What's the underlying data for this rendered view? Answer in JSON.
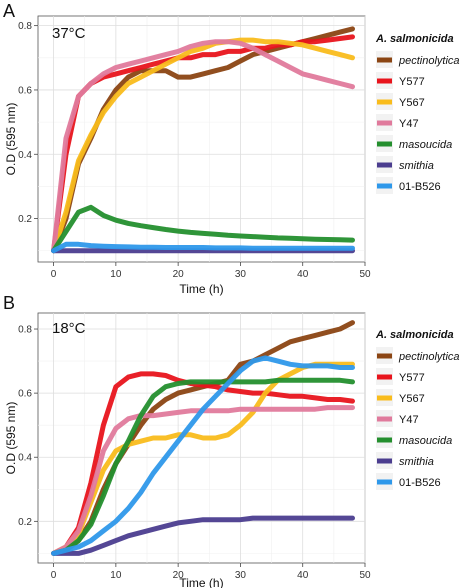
{
  "panels": [
    {
      "label": "A",
      "temperature": "37°C"
    },
    {
      "label": "B",
      "temperature": "18°C"
    }
  ],
  "legend": {
    "title": "A. salmonicida",
    "entries": [
      {
        "name": "pectinolytica",
        "color": "#8B4513",
        "italic": true
      },
      {
        "name": "Y577",
        "color": "#E8141C",
        "italic": false
      },
      {
        "name": "Y567",
        "color": "#F9BC1C",
        "italic": false
      },
      {
        "name": "Y47",
        "color": "#E07A9C",
        "italic": false
      },
      {
        "name": "masoucida",
        "color": "#248F2E",
        "italic": true
      },
      {
        "name": "smithia",
        "color": "#4B3D8F",
        "italic": true
      },
      {
        "name": "01-B526",
        "color": "#2E98EA",
        "italic": false
      }
    ]
  },
  "chart_data": [
    {
      "type": "line",
      "panel": "A",
      "annotation": "37°C",
      "xlabel": "Time (h)",
      "ylabel": "O.D (595 nm)",
      "xlim": [
        -2.5,
        50
      ],
      "ylim": [
        0.065,
        0.83
      ],
      "xticks": [
        0,
        10,
        20,
        30,
        40,
        50
      ],
      "yticks": [
        0.2,
        0.4,
        0.6,
        0.8
      ],
      "grid": true,
      "legend_position": "right",
      "x": [
        0,
        2,
        4,
        6,
        8,
        10,
        12,
        14,
        16,
        18,
        20,
        22,
        24,
        26,
        28,
        30,
        32,
        34,
        36,
        38,
        40,
        42,
        44,
        46,
        48
      ],
      "series": [
        {
          "name": "pectinolytica",
          "values": [
            0.1,
            0.2,
            0.37,
            0.45,
            0.54,
            0.6,
            0.64,
            0.66,
            0.66,
            0.66,
            0.64,
            0.64,
            0.65,
            0.66,
            0.67,
            0.69,
            0.71,
            0.72,
            0.73,
            0.74,
            0.75,
            0.76,
            0.77,
            0.78,
            0.79
          ]
        },
        {
          "name": "Y577",
          "values": [
            0.1,
            0.4,
            0.58,
            0.62,
            0.64,
            0.65,
            0.66,
            0.67,
            0.68,
            0.69,
            0.7,
            0.7,
            0.71,
            0.71,
            0.72,
            0.72,
            0.73,
            0.73,
            0.74,
            0.74,
            0.75,
            0.75,
            0.755,
            0.76,
            0.765
          ]
        },
        {
          "name": "Y567",
          "values": [
            0.1,
            0.22,
            0.38,
            0.46,
            0.53,
            0.58,
            0.62,
            0.64,
            0.66,
            0.68,
            0.7,
            0.72,
            0.73,
            0.745,
            0.75,
            0.755,
            0.755,
            0.75,
            0.75,
            0.745,
            0.74,
            0.73,
            0.72,
            0.71,
            0.7
          ]
        },
        {
          "name": "Y47",
          "values": [
            0.1,
            0.45,
            0.58,
            0.62,
            0.65,
            0.67,
            0.68,
            0.69,
            0.7,
            0.71,
            0.72,
            0.735,
            0.745,
            0.75,
            0.75,
            0.745,
            0.73,
            0.71,
            0.69,
            0.67,
            0.65,
            0.64,
            0.63,
            0.62,
            0.61
          ]
        },
        {
          "name": "masoucida",
          "values": [
            0.1,
            0.16,
            0.22,
            0.235,
            0.21,
            0.195,
            0.185,
            0.178,
            0.172,
            0.166,
            0.161,
            0.157,
            0.154,
            0.151,
            0.148,
            0.146,
            0.144,
            0.142,
            0.14,
            0.139,
            0.137,
            0.136,
            0.135,
            0.134,
            0.133
          ]
        },
        {
          "name": "smithia",
          "values": [
            0.1,
            0.1,
            0.1,
            0.1,
            0.1,
            0.1,
            0.1,
            0.1,
            0.1,
            0.1,
            0.1,
            0.1,
            0.1,
            0.1,
            0.1,
            0.1,
            0.1,
            0.1,
            0.1,
            0.1,
            0.1,
            0.1,
            0.1,
            0.1,
            0.1
          ]
        },
        {
          "name": "01-B526",
          "values": [
            0.1,
            0.12,
            0.12,
            0.116,
            0.114,
            0.113,
            0.112,
            0.111,
            0.111,
            0.11,
            0.11,
            0.11,
            0.11,
            0.109,
            0.109,
            0.109,
            0.108,
            0.108,
            0.108,
            0.108,
            0.108,
            0.108,
            0.108,
            0.108,
            0.108
          ]
        }
      ]
    },
    {
      "type": "line",
      "panel": "B",
      "annotation": "18°C",
      "xlabel": "Time (h)",
      "ylabel": "O.D (595 nm)",
      "xlim": [
        -2.5,
        50
      ],
      "ylim": [
        0.07,
        0.85
      ],
      "xticks": [
        0,
        10,
        20,
        30,
        40,
        50
      ],
      "yticks": [
        0.2,
        0.4,
        0.6,
        0.8
      ],
      "grid": true,
      "legend_position": "right",
      "x": [
        0,
        2,
        4,
        6,
        8,
        10,
        12,
        14,
        16,
        18,
        20,
        22,
        24,
        26,
        28,
        30,
        32,
        34,
        36,
        38,
        40,
        42,
        44,
        46,
        48
      ],
      "series": [
        {
          "name": "pectinolytica",
          "values": [
            0.1,
            0.11,
            0.14,
            0.2,
            0.3,
            0.38,
            0.44,
            0.5,
            0.55,
            0.58,
            0.6,
            0.61,
            0.62,
            0.63,
            0.64,
            0.69,
            0.7,
            0.72,
            0.74,
            0.76,
            0.77,
            0.78,
            0.79,
            0.8,
            0.82
          ]
        },
        {
          "name": "Y577",
          "values": [
            0.1,
            0.12,
            0.18,
            0.32,
            0.5,
            0.62,
            0.65,
            0.66,
            0.66,
            0.655,
            0.64,
            0.63,
            0.625,
            0.62,
            0.61,
            0.605,
            0.6,
            0.6,
            0.595,
            0.59,
            0.59,
            0.585,
            0.58,
            0.58,
            0.575
          ]
        },
        {
          "name": "Y567",
          "values": [
            0.1,
            0.12,
            0.16,
            0.26,
            0.36,
            0.42,
            0.44,
            0.45,
            0.46,
            0.46,
            0.47,
            0.47,
            0.46,
            0.46,
            0.47,
            0.5,
            0.54,
            0.6,
            0.64,
            0.66,
            0.68,
            0.69,
            0.69,
            0.69,
            0.69
          ]
        },
        {
          "name": "Y47",
          "values": [
            0.1,
            0.12,
            0.17,
            0.28,
            0.42,
            0.49,
            0.52,
            0.53,
            0.53,
            0.535,
            0.54,
            0.545,
            0.545,
            0.545,
            0.545,
            0.55,
            0.55,
            0.55,
            0.55,
            0.55,
            0.55,
            0.55,
            0.555,
            0.555,
            0.555
          ]
        },
        {
          "name": "masoucida",
          "values": [
            0.1,
            0.11,
            0.14,
            0.19,
            0.28,
            0.38,
            0.45,
            0.53,
            0.59,
            0.62,
            0.63,
            0.635,
            0.635,
            0.635,
            0.635,
            0.635,
            0.635,
            0.635,
            0.64,
            0.64,
            0.64,
            0.64,
            0.64,
            0.64,
            0.635
          ]
        },
        {
          "name": "smithia",
          "values": [
            0.1,
            0.1,
            0.1,
            0.11,
            0.125,
            0.14,
            0.155,
            0.165,
            0.175,
            0.185,
            0.195,
            0.2,
            0.205,
            0.205,
            0.205,
            0.205,
            0.21,
            0.21,
            0.21,
            0.21,
            0.21,
            0.21,
            0.21,
            0.21,
            0.21
          ]
        },
        {
          "name": "01-B526",
          "values": [
            0.1,
            0.11,
            0.12,
            0.14,
            0.17,
            0.2,
            0.24,
            0.29,
            0.35,
            0.4,
            0.45,
            0.5,
            0.55,
            0.59,
            0.63,
            0.67,
            0.7,
            0.71,
            0.7,
            0.69,
            0.685,
            0.685,
            0.685,
            0.68,
            0.68
          ]
        }
      ]
    }
  ]
}
